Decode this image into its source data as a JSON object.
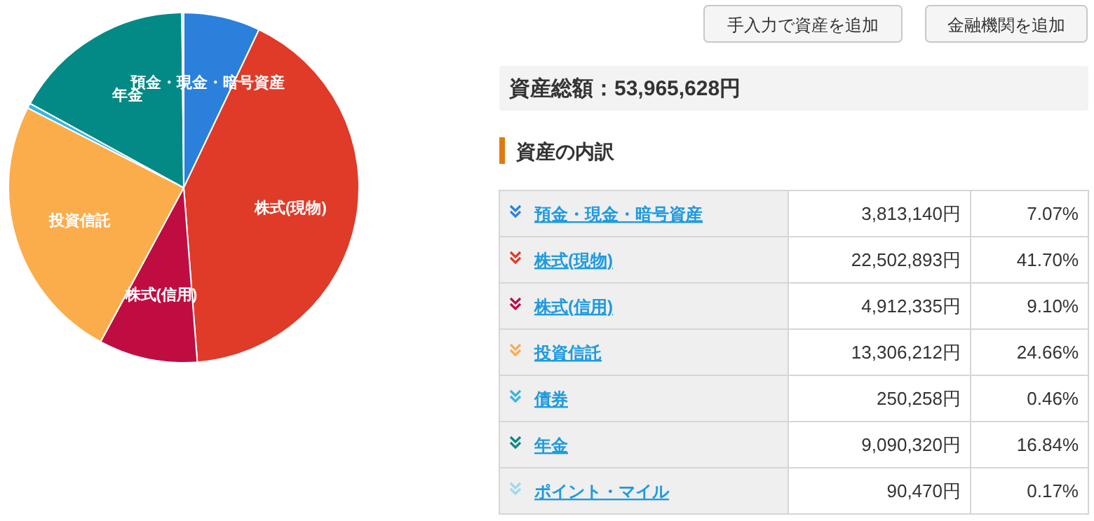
{
  "chart_data": {
    "type": "pie",
    "title": "資産総額：53,965,628円",
    "legend_title": "資産の内訳",
    "categories": [
      "預金・現金・暗号資産",
      "株式(現物)",
      "株式(信用)",
      "投資信託",
      "債券",
      "年金",
      "ポイント・マイル"
    ],
    "values": [
      3813140,
      22502893,
      4912335,
      13306212,
      250258,
      9090320,
      90470
    ],
    "colors": [
      "#2b80dc",
      "#e03a28",
      "#bf0d42",
      "#fbad4c",
      "#33b5e5",
      "#038a86",
      "#a0d8ef"
    ],
    "value_labels": [
      "3,813,140円",
      "22,502,893円",
      "4,912,335円",
      "13,306,212円",
      "250,258円",
      "9,090,320円",
      "90,470円"
    ],
    "legend": "right",
    "annotations": [
      "手入力で資産を追加",
      "金融機関を追加",
      "7.07%",
      "41.70%",
      "9.10%",
      "24.66%",
      "0.46%",
      "16.84%",
      "0.17%"
    ]
  }
}
